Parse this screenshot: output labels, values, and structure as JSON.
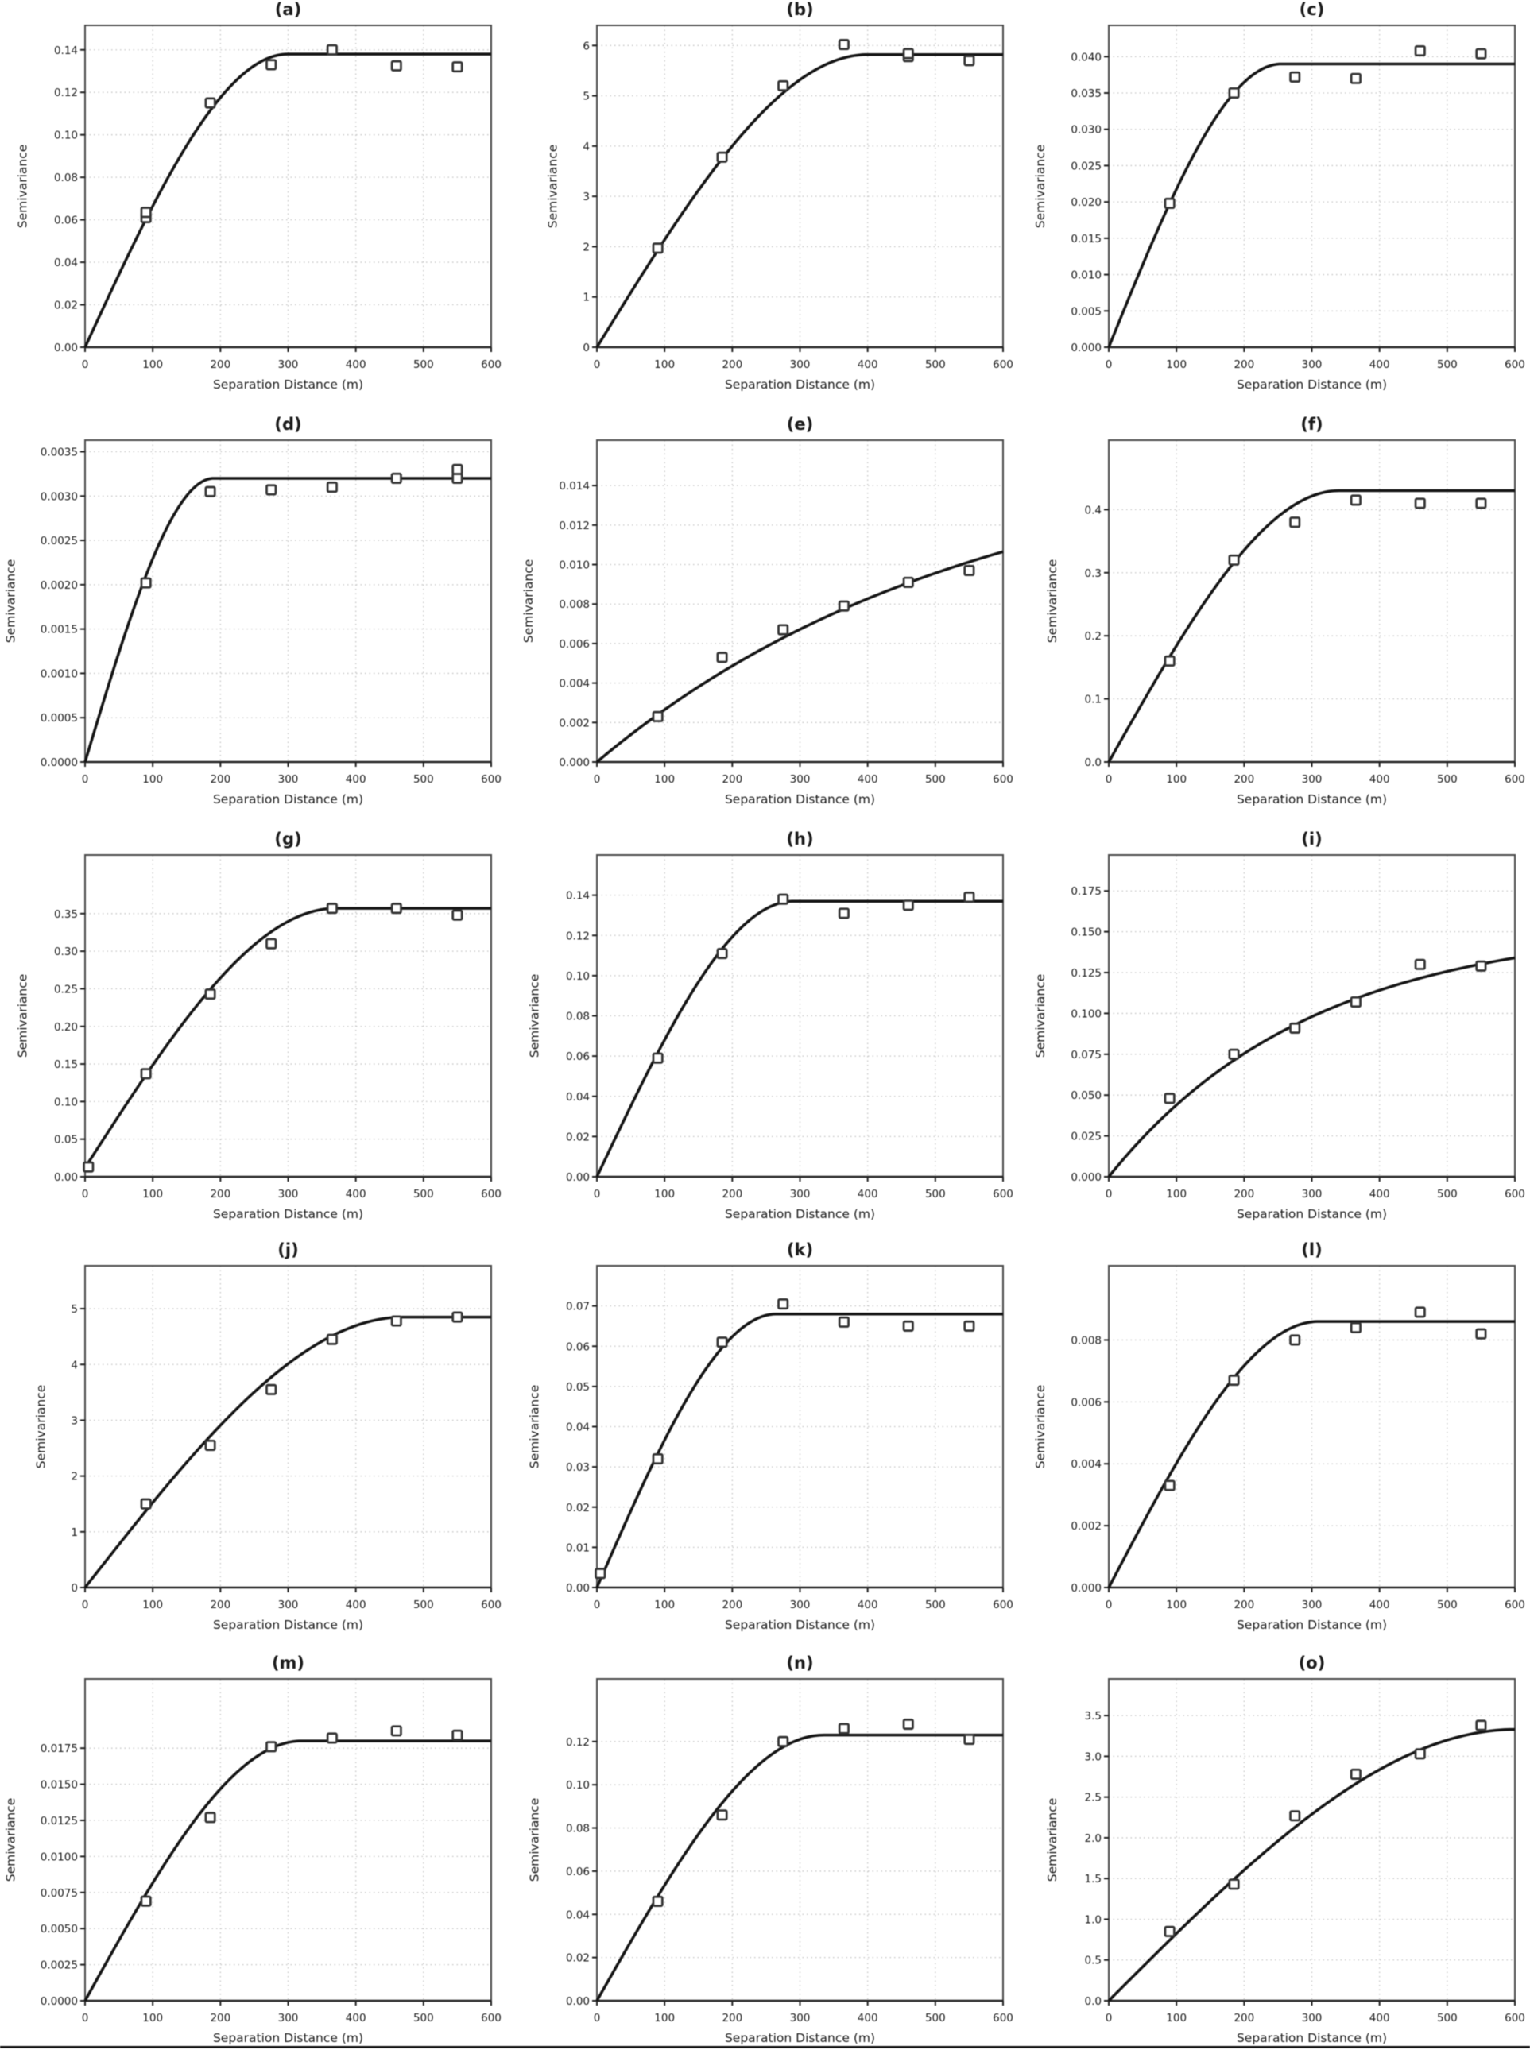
{
  "figure": {
    "xlabel": "Separation Distance (m)",
    "ylabel": "Semivariance",
    "x_max": 600,
    "x_step": 100,
    "colors": {
      "text": "#1c1c1c",
      "box": "#4a4a4a",
      "axis": "#222222",
      "grid": "#c6c6c6",
      "curve": "#141414",
      "marker": "#333333"
    }
  },
  "chart_data": [
    {
      "type": "scatter",
      "title": "(a)",
      "xlabel": "Separation Distance (m)",
      "ylabel": "Semivariance",
      "xlim": [
        0,
        600
      ],
      "ylim": [
        0,
        0.1515
      ],
      "ytick_step": 0.02,
      "ytick_max": 0.14,
      "decimals": 2,
      "x": [
        90,
        90,
        185,
        275,
        365,
        460,
        550
      ],
      "y": [
        0.061,
        0.0635,
        0.115,
        0.133,
        0.14,
        0.1325,
        0.132
      ],
      "fit": {
        "model": "spherical",
        "nugget": 0,
        "sill": 0.138,
        "range": 300
      }
    },
    {
      "type": "scatter",
      "title": "(b)",
      "xlabel": "Separation Distance (m)",
      "ylabel": "Semivariance",
      "xlim": [
        0,
        600
      ],
      "ylim": [
        0,
        6.4
      ],
      "ytick_step": 1,
      "ytick_max": 6,
      "decimals": 0,
      "x": [
        90,
        185,
        275,
        365,
        460,
        460,
        550
      ],
      "y": [
        1.97,
        3.78,
        5.2,
        6.02,
        5.78,
        5.84,
        5.7
      ],
      "fit": {
        "model": "spherical",
        "nugget": 0,
        "sill": 5.82,
        "range": 400
      }
    },
    {
      "type": "scatter",
      "title": "(c)",
      "xlabel": "Separation Distance (m)",
      "ylabel": "Semivariance",
      "xlim": [
        0,
        600
      ],
      "ylim": [
        0,
        0.0443
      ],
      "ytick_step": 0.005,
      "ytick_max": 0.04,
      "decimals": 3,
      "x": [
        90,
        185,
        275,
        365,
        460,
        550
      ],
      "y": [
        0.0198,
        0.035,
        0.0372,
        0.037,
        0.0408,
        0.0404
      ],
      "fit": {
        "model": "spherical",
        "nugget": 0,
        "sill": 0.039,
        "range": 255
      }
    },
    {
      "type": "scatter",
      "title": "(d)",
      "xlabel": "Separation Distance (m)",
      "ylabel": "Semivariance",
      "xlim": [
        0,
        600
      ],
      "ylim": [
        0,
        0.00363
      ],
      "ytick_step": 0.0005,
      "ytick_max": 0.0035,
      "decimals": 4,
      "x": [
        90,
        185,
        275,
        365,
        460,
        550,
        550
      ],
      "y": [
        0.00202,
        0.00305,
        0.00307,
        0.0031,
        0.0032,
        0.0032,
        0.0033
      ],
      "fit": {
        "model": "spherical",
        "nugget": 0,
        "sill": 0.0032,
        "range": 190
      }
    },
    {
      "type": "scatter",
      "title": "(e)",
      "xlabel": "Separation Distance (m)",
      "ylabel": "Semivariance",
      "xlim": [
        0,
        600
      ],
      "ylim": [
        0,
        0.0163
      ],
      "ytick_step": 0.002,
      "ytick_max": 0.014,
      "decimals": 3,
      "x": [
        90,
        185,
        275,
        365,
        460,
        550
      ],
      "y": [
        0.0023,
        0.0053,
        0.0067,
        0.0079,
        0.0091,
        0.0097
      ],
      "fit": {
        "model": "exponential",
        "nugget": 0,
        "sill": 0.0162,
        "range": 560
      }
    },
    {
      "type": "scatter",
      "title": "(f)",
      "xlabel": "Separation Distance (m)",
      "ylabel": "Semivariance",
      "xlim": [
        0,
        600
      ],
      "ylim": [
        0,
        0.51
      ],
      "ytick_step": 0.1,
      "ytick_max": 0.4,
      "decimals": 1,
      "x": [
        90,
        185,
        275,
        365,
        460,
        550
      ],
      "y": [
        0.16,
        0.32,
        0.38,
        0.415,
        0.41,
        0.41
      ],
      "fit": {
        "model": "spherical",
        "nugget": 0,
        "sill": 0.43,
        "range": 340
      }
    },
    {
      "type": "scatter",
      "title": "(g)",
      "xlabel": "Separation Distance (m)",
      "ylabel": "Semivariance",
      "xlim": [
        0,
        600
      ],
      "ylim": [
        0,
        0.428
      ],
      "ytick_step": 0.05,
      "ytick_max": 0.35,
      "decimals": 2,
      "x": [
        5,
        90,
        185,
        275,
        365,
        460,
        550
      ],
      "y": [
        0.013,
        0.137,
        0.243,
        0.31,
        0.357,
        0.357,
        0.348
      ],
      "fit": {
        "model": "spherical",
        "nugget": 0.012,
        "sill": 0.345,
        "range": 370
      }
    },
    {
      "type": "scatter",
      "title": "(h)",
      "xlabel": "Separation Distance (m)",
      "ylabel": "Semivariance",
      "xlim": [
        0,
        600
      ],
      "ylim": [
        0,
        0.16
      ],
      "ytick_step": 0.02,
      "ytick_max": 0.14,
      "decimals": 2,
      "x": [
        90,
        185,
        275,
        365,
        460,
        550
      ],
      "y": [
        0.059,
        0.111,
        0.138,
        0.131,
        0.135,
        0.139
      ],
      "fit": {
        "model": "spherical",
        "nugget": 0,
        "sill": 0.137,
        "range": 290
      }
    },
    {
      "type": "scatter",
      "title": "(i)",
      "xlabel": "Separation Distance (m)",
      "ylabel": "Semivariance",
      "xlim": [
        0,
        600
      ],
      "ylim": [
        0,
        0.197
      ],
      "ytick_step": 0.025,
      "ytick_max": 0.175,
      "decimals": 3,
      "x": [
        90,
        185,
        275,
        365,
        460,
        550
      ],
      "y": [
        0.048,
        0.075,
        0.091,
        0.107,
        0.13,
        0.129
      ],
      "fit": {
        "model": "exponential",
        "nugget": 0,
        "sill": 0.155,
        "range": 300
      }
    },
    {
      "type": "scatter",
      "title": "(j)",
      "xlabel": "Separation Distance (m)",
      "ylabel": "Semivariance",
      "xlim": [
        0,
        600
      ],
      "ylim": [
        0,
        5.77
      ],
      "ytick_step": 1,
      "ytick_max": 5,
      "decimals": 0,
      "x": [
        90,
        185,
        275,
        365,
        460,
        550
      ],
      "y": [
        1.5,
        2.55,
        3.55,
        4.45,
        4.78,
        4.85
      ],
      "fit": {
        "model": "spherical",
        "nugget": 0,
        "sill": 4.85,
        "range": 470
      }
    },
    {
      "type": "scatter",
      "title": "(k)",
      "xlabel": "Separation Distance (m)",
      "ylabel": "Semivariance",
      "xlim": [
        0,
        600
      ],
      "ylim": [
        0,
        0.08
      ],
      "ytick_step": 0.01,
      "ytick_max": 0.07,
      "decimals": 2,
      "x": [
        5,
        90,
        185,
        275,
        365,
        460,
        550
      ],
      "y": [
        0.0035,
        0.032,
        0.061,
        0.0705,
        0.066,
        0.065,
        0.065
      ],
      "fit": {
        "model": "spherical",
        "nugget": 0,
        "sill": 0.068,
        "range": 265
      }
    },
    {
      "type": "scatter",
      "title": "(l)",
      "xlabel": "Separation Distance (m)",
      "ylabel": "Semivariance",
      "xlim": [
        0,
        600
      ],
      "ylim": [
        0,
        0.0104
      ],
      "ytick_step": 0.002,
      "ytick_max": 0.008,
      "decimals": 3,
      "x": [
        90,
        185,
        275,
        365,
        460,
        550
      ],
      "y": [
        0.0033,
        0.0067,
        0.008,
        0.0084,
        0.0089,
        0.0082
      ],
      "fit": {
        "model": "spherical",
        "nugget": 0,
        "sill": 0.0086,
        "range": 310
      }
    },
    {
      "type": "scatter",
      "title": "(m)",
      "xlabel": "Separation Distance (m)",
      "ylabel": "Semivariance",
      "xlim": [
        0,
        600
      ],
      "ylim": [
        0,
        0.0223
      ],
      "ytick_step": 0.0025,
      "ytick_max": 0.0175,
      "decimals": 4,
      "x": [
        90,
        185,
        275,
        365,
        460,
        550
      ],
      "y": [
        0.0069,
        0.0127,
        0.0176,
        0.0182,
        0.0187,
        0.0184
      ],
      "fit": {
        "model": "spherical",
        "nugget": 0,
        "sill": 0.018,
        "range": 320
      }
    },
    {
      "type": "scatter",
      "title": "(n)",
      "xlabel": "Separation Distance (m)",
      "ylabel": "Semivariance",
      "xlim": [
        0,
        600
      ],
      "ylim": [
        0,
        0.149
      ],
      "ytick_step": 0.02,
      "ytick_max": 0.12,
      "decimals": 2,
      "x": [
        90,
        185,
        275,
        365,
        460,
        550
      ],
      "y": [
        0.046,
        0.086,
        0.12,
        0.126,
        0.128,
        0.121
      ],
      "fit": {
        "model": "spherical",
        "nugget": 0,
        "sill": 0.123,
        "range": 335
      }
    },
    {
      "type": "scatter",
      "title": "(o)",
      "xlabel": "Separation Distance (m)",
      "ylabel": "Semivariance",
      "xlim": [
        0,
        600
      ],
      "ylim": [
        0,
        3.95
      ],
      "ytick_step": 0.5,
      "ytick_max": 3.5,
      "decimals": 1,
      "x": [
        90,
        185,
        275,
        365,
        460,
        550
      ],
      "y": [
        0.85,
        1.43,
        2.27,
        2.78,
        3.03,
        3.38
      ],
      "fit": {
        "model": "spherical",
        "nugget": 0,
        "sill": 3.33,
        "range": 600
      }
    }
  ]
}
